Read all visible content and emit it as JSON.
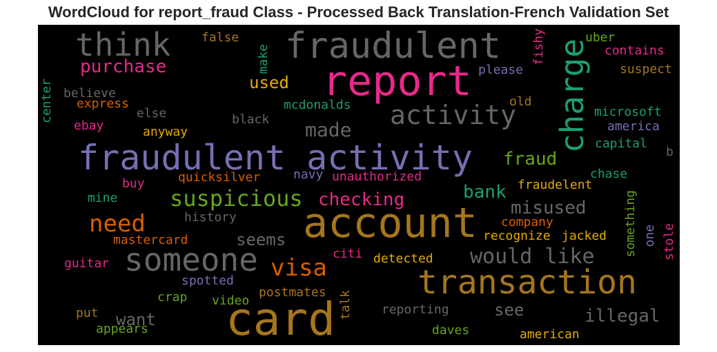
{
  "chart_data": {
    "type": "wordcloud",
    "title": "WordCloud for report_fraud Class - Processed Back Translation-French Validation Set",
    "background": "#000000",
    "words": [
      {
        "text": "report",
        "color": "#e7298a"
      },
      {
        "text": "fraudulent activity",
        "color": "#7570b3"
      },
      {
        "text": "account",
        "color": "#a6761d"
      },
      {
        "text": "card",
        "color": "#a6761d"
      },
      {
        "text": "transaction",
        "color": "#a6761d"
      },
      {
        "text": "fraudulent",
        "color": "#666666"
      },
      {
        "text": "someone",
        "color": "#666666"
      },
      {
        "text": "think",
        "color": "#666666"
      },
      {
        "text": "charge",
        "color": "#1b9e77"
      },
      {
        "text": "activity",
        "color": "#666666"
      },
      {
        "text": "suspicious",
        "color": "#66a61e"
      },
      {
        "text": "need",
        "color": "#d95f02"
      },
      {
        "text": "visa",
        "color": "#d95f02"
      },
      {
        "text": "would like",
        "color": "#666666"
      },
      {
        "text": "purchase",
        "color": "#e7298a"
      },
      {
        "text": "made",
        "color": "#666666"
      },
      {
        "text": "checking",
        "color": "#e7298a"
      },
      {
        "text": "bank",
        "color": "#1b9e77"
      },
      {
        "text": "fraud",
        "color": "#66a61e"
      },
      {
        "text": "misused",
        "color": "#666666"
      },
      {
        "text": "illegal",
        "color": "#666666"
      },
      {
        "text": "used",
        "color": "#e6ab02"
      },
      {
        "text": "seems",
        "color": "#666666"
      },
      {
        "text": "want",
        "color": "#666666"
      },
      {
        "text": "see",
        "color": "#666666"
      },
      {
        "text": "unauthorized",
        "color": "#e7298a"
      },
      {
        "text": "quicksilver",
        "color": "#d95f02"
      },
      {
        "text": "fraudelent",
        "color": "#e6ab02"
      },
      {
        "text": "recognize",
        "color": "#e6ab02"
      },
      {
        "text": "jacked",
        "color": "#e6ab02"
      },
      {
        "text": "detected",
        "color": "#e6ab02"
      },
      {
        "text": "american",
        "color": "#e6ab02"
      },
      {
        "text": "mcdonalds",
        "color": "#1b9e77"
      },
      {
        "text": "microsoft",
        "color": "#1b9e77"
      },
      {
        "text": "america",
        "color": "#7570b3"
      },
      {
        "text": "capital",
        "color": "#1b9e77"
      },
      {
        "text": "chase",
        "color": "#1b9e77"
      },
      {
        "text": "please",
        "color": "#7570b3"
      },
      {
        "text": "navy",
        "color": "#7570b3"
      },
      {
        "text": "spotted",
        "color": "#7570b3"
      },
      {
        "text": "believe",
        "color": "#666666"
      },
      {
        "text": "express",
        "color": "#d95f02"
      },
      {
        "text": "else",
        "color": "#666666"
      },
      {
        "text": "black",
        "color": "#666666"
      },
      {
        "text": "ebay",
        "color": "#e7298a"
      },
      {
        "text": "anyway",
        "color": "#e6ab02"
      },
      {
        "text": "buy",
        "color": "#e7298a"
      },
      {
        "text": "mine",
        "color": "#1b9e77"
      },
      {
        "text": "history",
        "color": "#666666"
      },
      {
        "text": "mastercard",
        "color": "#d95f02"
      },
      {
        "text": "guitar",
        "color": "#e7298a"
      },
      {
        "text": "crap",
        "color": "#66a61e"
      },
      {
        "text": "video",
        "color": "#66a61e"
      },
      {
        "text": "postmates",
        "color": "#a6761d"
      },
      {
        "text": "put",
        "color": "#a6761d"
      },
      {
        "text": "appears",
        "color": "#66a61e"
      },
      {
        "text": "reporting",
        "color": "#666666"
      },
      {
        "text": "daves",
        "color": "#66a61e"
      },
      {
        "text": "citi",
        "color": "#e7298a"
      },
      {
        "text": "company",
        "color": "#d95f02"
      },
      {
        "text": "false",
        "color": "#a6761d"
      },
      {
        "text": "uber",
        "color": "#66a61e"
      },
      {
        "text": "contains",
        "color": "#e7298a"
      },
      {
        "text": "suspect",
        "color": "#a6761d"
      },
      {
        "text": "old",
        "color": "#a6761d"
      },
      {
        "text": "b",
        "color": "#666666"
      },
      {
        "text": "make",
        "color": "#1b9e77"
      },
      {
        "text": "fishy",
        "color": "#e7298a"
      },
      {
        "text": "center",
        "color": "#1b9e77"
      },
      {
        "text": "talk",
        "color": "#a6761d"
      },
      {
        "text": "something",
        "color": "#66a61e"
      },
      {
        "text": "one",
        "color": "#7570b3"
      },
      {
        "text": "stole",
        "color": "#e7298a"
      }
    ]
  }
}
